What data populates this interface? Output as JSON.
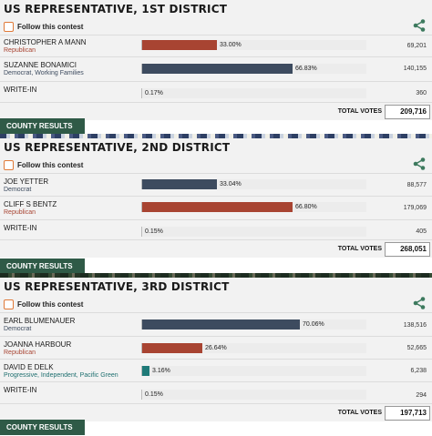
{
  "follow_label": "Follow this contest",
  "county_results_label": "COUNTY RESULTS",
  "total_votes_label": "TOTAL VOTES",
  "colors": {
    "republican": "#a84432",
    "democrat": "#3d4b5f",
    "independent": "#1f7a78",
    "writein": "#cfcfcf",
    "button": "#2f5a47",
    "share": "#3d7a5e"
  },
  "contests": [
    {
      "title": "US REPRESENTATIVE, 1ST DISTRICT",
      "total": "209,716",
      "candidates": [
        {
          "name": "CHRISTOPHER A MANN",
          "party": "Republican",
          "pct_label": "33.00%",
          "pct": 33.0,
          "votes": "69,201"
        },
        {
          "name": "SUZANNE BONAMICI",
          "party": "Democrat, Working Families",
          "pct_label": "66.83%",
          "pct": 66.83,
          "votes": "140,155"
        },
        {
          "name": "WRITE-IN",
          "party": "",
          "pct_label": "0.17%",
          "pct": 0.17,
          "votes": "360"
        }
      ]
    },
    {
      "title": "US REPRESENTATIVE, 2ND DISTRICT",
      "total": "268,051",
      "candidates": [
        {
          "name": "JOE YETTER",
          "party": "Democrat",
          "pct_label": "33.04%",
          "pct": 33.04,
          "votes": "88,577"
        },
        {
          "name": "CLIFF S BENTZ",
          "party": "Republican",
          "pct_label": "66.80%",
          "pct": 66.8,
          "votes": "179,069"
        },
        {
          "name": "WRITE-IN",
          "party": "",
          "pct_label": "0.15%",
          "pct": 0.15,
          "votes": "405"
        }
      ]
    },
    {
      "title": "US REPRESENTATIVE, 3RD DISTRICT",
      "total": "197,713",
      "candidates": [
        {
          "name": "EARL BLUMENAUER",
          "party": "Democrat",
          "pct_label": "70.06%",
          "pct": 70.06,
          "votes": "138,516"
        },
        {
          "name": "JOANNA HARBOUR",
          "party": "Republican",
          "pct_label": "26.64%",
          "pct": 26.64,
          "votes": "52,665"
        },
        {
          "name": "DAVID E DELK",
          "party": "Progressive, Independent, Pacific Green",
          "pct_label": "3.16%",
          "pct": 3.16,
          "votes": "6,238"
        },
        {
          "name": "WRITE-IN",
          "party": "",
          "pct_label": "0.15%",
          "pct": 0.15,
          "votes": "294"
        }
      ]
    }
  ]
}
